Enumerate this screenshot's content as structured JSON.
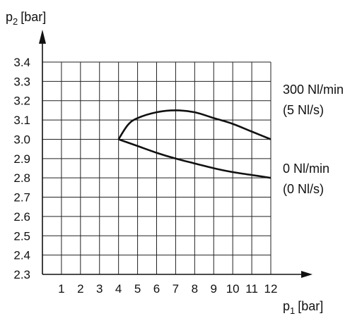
{
  "chart_data": {
    "type": "line",
    "xlabel": "p",
    "xlabel_sub": "1",
    "xlabel_unit": "[bar]",
    "ylabel": "p",
    "ylabel_sub": "2",
    "ylabel_unit": "[bar]",
    "x_ticks": [
      "1",
      "2",
      "3",
      "4",
      "5",
      "6",
      "7",
      "8",
      "9",
      "10",
      "11",
      "12"
    ],
    "y_ticks": [
      "2.3",
      "2.4",
      "2.5",
      "2.6",
      "2.7",
      "2.8",
      "2.9",
      "3.0",
      "3.1",
      "3.2",
      "3.3",
      "3.4"
    ],
    "xlim": [
      0,
      12
    ],
    "ylim": [
      2.3,
      3.4
    ],
    "grid": true,
    "series": [
      {
        "name_line1": "300 Nl/min",
        "name_line2": "(5 Nl/s)",
        "x": [
          4,
          4.5,
          5,
          6,
          7,
          8,
          9,
          10,
          11,
          12
        ],
        "y": [
          3.0,
          3.075,
          3.11,
          3.14,
          3.15,
          3.14,
          3.11,
          3.08,
          3.04,
          3.0
        ]
      },
      {
        "name_line1": "0 Nl/min",
        "name_line2": "(0 Nl/s)",
        "x": [
          4,
          5,
          6,
          7,
          8,
          9,
          10,
          11,
          12
        ],
        "y": [
          3.0,
          2.965,
          2.93,
          2.9,
          2.875,
          2.85,
          2.83,
          2.815,
          2.8
        ]
      }
    ]
  }
}
